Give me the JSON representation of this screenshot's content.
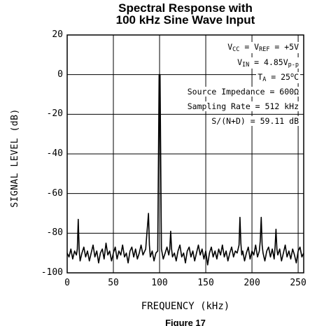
{
  "chart_data": {
    "type": "line",
    "title_lines": [
      "Spectral Response with",
      "100 kHz Sine Wave Input"
    ],
    "xlabel": "FREQUENCY (kHz)",
    "ylabel": "SIGNAL LEVEL (dB)",
    "caption": "Figure 17",
    "xlim": [
      0,
      256
    ],
    "ylim": [
      -100,
      20
    ],
    "x_ticks": [
      "0",
      "50",
      "100",
      "150",
      "200",
      "250"
    ],
    "y_ticks": [
      "20",
      "0",
      "-20",
      "-40",
      "-60",
      "-80",
      "-100"
    ],
    "grid": true,
    "annotations": [
      {
        "name": "vcc",
        "parts": [
          [
            "t",
            "V"
          ],
          [
            "sub",
            "CC"
          ],
          [
            "t",
            " = V"
          ],
          [
            "sub",
            "REF"
          ],
          [
            "t",
            " = +5V"
          ]
        ]
      },
      {
        "name": "vin",
        "parts": [
          [
            "t",
            "V"
          ],
          [
            "sub",
            "IN"
          ],
          [
            "t",
            " = 4.85V"
          ],
          [
            "sub",
            "p-p"
          ]
        ]
      },
      {
        "name": "ta",
        "parts": [
          [
            "t",
            "T"
          ],
          [
            "sub",
            "A"
          ],
          [
            "t",
            " = 25"
          ],
          [
            "sup",
            "o"
          ],
          [
            "t",
            "C"
          ]
        ]
      },
      {
        "name": "source-impedance",
        "parts": [
          [
            "t",
            "Source Impedance = 600Ω"
          ]
        ]
      },
      {
        "name": "sampling-rate",
        "parts": [
          [
            "t",
            "Sampling Rate = 512 kHz"
          ]
        ]
      },
      {
        "name": "snr",
        "parts": [
          [
            "t",
            "S/(N+D) = 59.11 dB"
          ]
        ]
      }
    ],
    "series": [
      {
        "values": [
          [
            0,
            -90
          ],
          [
            2,
            -92
          ],
          [
            4,
            -88
          ],
          [
            6,
            -93
          ],
          [
            8,
            -89
          ],
          [
            10,
            -91
          ],
          [
            11,
            -88
          ],
          [
            12,
            -73
          ],
          [
            13,
            -89
          ],
          [
            14,
            -94
          ],
          [
            16,
            -90
          ],
          [
            18,
            -87
          ],
          [
            20,
            -92
          ],
          [
            22,
            -89
          ],
          [
            24,
            -94
          ],
          [
            26,
            -90
          ],
          [
            28,
            -86
          ],
          [
            30,
            -92
          ],
          [
            32,
            -89
          ],
          [
            34,
            -95
          ],
          [
            36,
            -90
          ],
          [
            38,
            -88
          ],
          [
            40,
            -93
          ],
          [
            42,
            -85
          ],
          [
            44,
            -91
          ],
          [
            46,
            -89
          ],
          [
            48,
            -94
          ],
          [
            50,
            -90
          ],
          [
            52,
            -87
          ],
          [
            54,
            -93
          ],
          [
            56,
            -89
          ],
          [
            58,
            -91
          ],
          [
            60,
            -86
          ],
          [
            62,
            -92
          ],
          [
            64,
            -90
          ],
          [
            66,
            -95
          ],
          [
            68,
            -89
          ],
          [
            70,
            -87
          ],
          [
            72,
            -92
          ],
          [
            74,
            -88
          ],
          [
            76,
            -93
          ],
          [
            78,
            -90
          ],
          [
            80,
            -86
          ],
          [
            82,
            -91
          ],
          [
            84,
            -89
          ],
          [
            85,
            -88
          ],
          [
            86,
            -82
          ],
          [
            88,
            -70
          ],
          [
            89,
            -86
          ],
          [
            90,
            -92
          ],
          [
            92,
            -89
          ],
          [
            94,
            -94
          ],
          [
            96,
            -90
          ],
          [
            98,
            -89
          ],
          [
            99.5,
            0
          ],
          [
            100.5,
            0
          ],
          [
            102,
            -88
          ],
          [
            104,
            -93
          ],
          [
            106,
            -90
          ],
          [
            108,
            -87
          ],
          [
            110,
            -91
          ],
          [
            111,
            -88
          ],
          [
            112,
            -79
          ],
          [
            113,
            -88
          ],
          [
            114,
            -92
          ],
          [
            116,
            -90
          ],
          [
            118,
            -94
          ],
          [
            120,
            -89
          ],
          [
            122,
            -86
          ],
          [
            124,
            -92
          ],
          [
            126,
            -90
          ],
          [
            128,
            -95
          ],
          [
            130,
            -89
          ],
          [
            132,
            -87
          ],
          [
            134,
            -92
          ],
          [
            136,
            -89
          ],
          [
            138,
            -94
          ],
          [
            140,
            -90
          ],
          [
            142,
            -86
          ],
          [
            144,
            -91
          ],
          [
            146,
            -88
          ],
          [
            148,
            -93
          ],
          [
            150,
            -89
          ],
          [
            152,
            -96
          ],
          [
            154,
            -90
          ],
          [
            156,
            -87
          ],
          [
            158,
            -92
          ],
          [
            160,
            -89
          ],
          [
            162,
            -93
          ],
          [
            164,
            -88
          ],
          [
            166,
            -91
          ],
          [
            168,
            -86
          ],
          [
            170,
            -92
          ],
          [
            172,
            -89
          ],
          [
            174,
            -94
          ],
          [
            176,
            -90
          ],
          [
            178,
            -87
          ],
          [
            180,
            -92
          ],
          [
            182,
            -89
          ],
          [
            184,
            -90
          ],
          [
            186,
            -86
          ],
          [
            187,
            -72
          ],
          [
            188,
            -85
          ],
          [
            189,
            -91
          ],
          [
            190,
            -89
          ],
          [
            192,
            -94
          ],
          [
            194,
            -90
          ],
          [
            196,
            -87
          ],
          [
            198,
            -93
          ],
          [
            200,
            -89
          ],
          [
            202,
            -91
          ],
          [
            204,
            -86
          ],
          [
            206,
            -92
          ],
          [
            208,
            -89
          ],
          [
            209,
            -84
          ],
          [
            210,
            -72
          ],
          [
            211,
            -86
          ],
          [
            212,
            -90
          ],
          [
            214,
            -94
          ],
          [
            216,
            -89
          ],
          [
            218,
            -87
          ],
          [
            220,
            -92
          ],
          [
            222,
            -88
          ],
          [
            224,
            -93
          ],
          [
            225,
            -87
          ],
          [
            226,
            -78
          ],
          [
            227,
            -88
          ],
          [
            228,
            -91
          ],
          [
            230,
            -88
          ],
          [
            232,
            -94
          ],
          [
            234,
            -90
          ],
          [
            236,
            -86
          ],
          [
            238,
            -92
          ],
          [
            240,
            -89
          ],
          [
            242,
            -93
          ],
          [
            244,
            -88
          ],
          [
            246,
            -91
          ],
          [
            248,
            -95
          ],
          [
            250,
            -89
          ],
          [
            252,
            -87
          ],
          [
            254,
            -92
          ],
          [
            256,
            -90
          ]
        ]
      }
    ]
  }
}
